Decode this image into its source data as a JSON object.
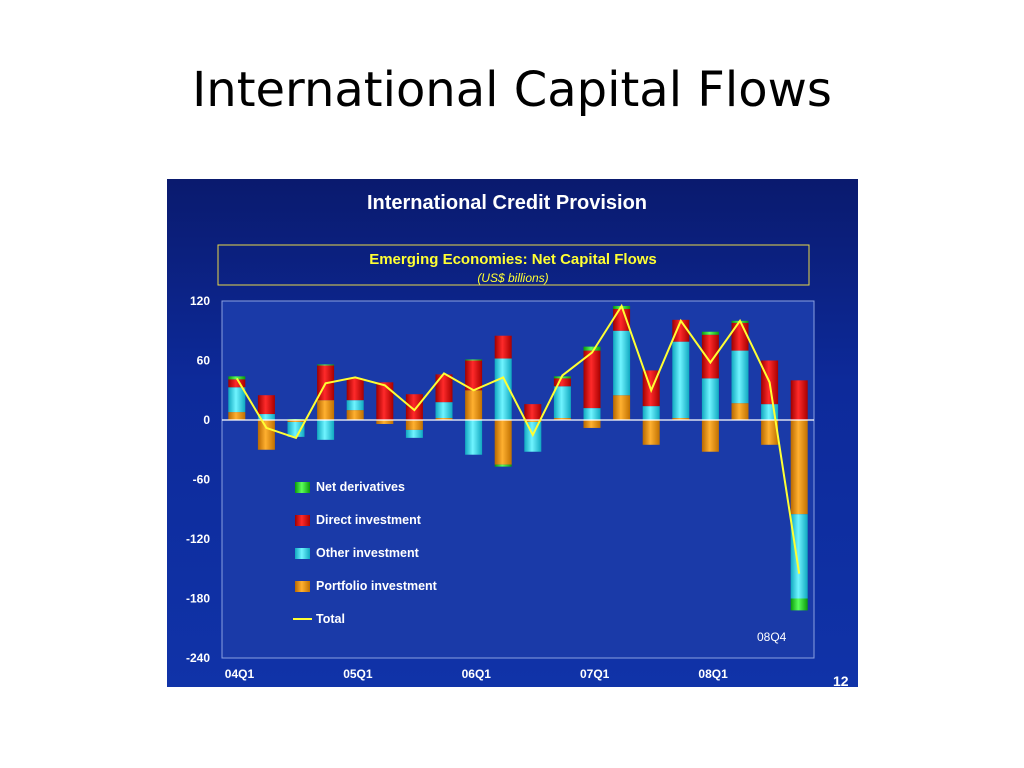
{
  "slide": {
    "title": "International Capital Flows",
    "page_number": "12"
  },
  "chart_data": {
    "type": "bar",
    "stacked": true,
    "title": "International Credit Provision",
    "subtitle": "Emerging Economies: Net Capital Flows",
    "unit_note": "(US$ billions)",
    "ylim": [
      -240,
      120
    ],
    "yticks": [
      120,
      60,
      0,
      -60,
      -120,
      -180,
      -240
    ],
    "categories": [
      "04Q1",
      "04Q2",
      "04Q3",
      "04Q4",
      "05Q1",
      "05Q2",
      "05Q3",
      "05Q4",
      "06Q1",
      "06Q2",
      "06Q3",
      "06Q4",
      "07Q1",
      "07Q2",
      "07Q3",
      "07Q4",
      "08Q1",
      "08Q2",
      "08Q3",
      "08Q4"
    ],
    "xtick_labels": [
      "04Q1",
      "05Q1",
      "06Q1",
      "07Q1",
      "08Q1"
    ],
    "annotation": "08Q4",
    "legend": {
      "position": "lower-left"
    },
    "colors": {
      "net_derivatives": "#1fd01f",
      "direct_investment": "#e00000",
      "other_investment": "#20d8e8",
      "portfolio_investment": "#e08a00",
      "total": "#ffff33"
    },
    "series": [
      {
        "name": "Portfolio investment",
        "key": "portfolio_investment",
        "values": [
          8,
          -30,
          -2,
          20,
          10,
          -4,
          -10,
          2,
          30,
          -45,
          -2,
          2,
          -8,
          25,
          -25,
          2,
          -32,
          17,
          -25,
          -95
        ]
      },
      {
        "name": "Other investment",
        "key": "other_investment",
        "values": [
          25,
          6,
          -15,
          -20,
          10,
          0,
          -8,
          16,
          -35,
          62,
          -30,
          32,
          12,
          65,
          14,
          77,
          42,
          53,
          16,
          -85
        ]
      },
      {
        "name": "Direct investment",
        "key": "direct_investment",
        "values": [
          8,
          19,
          0,
          35,
          22,
          38,
          26,
          28,
          30,
          23,
          16,
          8,
          58,
          22,
          36,
          22,
          44,
          28,
          44,
          40
        ]
      },
      {
        "name": "Net derivatives",
        "key": "net_derivatives",
        "values": [
          3,
          0,
          1,
          1,
          0,
          0,
          0,
          0,
          1,
          -2,
          0,
          2,
          4,
          3,
          0,
          0,
          3,
          2,
          0,
          -12
        ]
      }
    ],
    "total": {
      "name": "Total",
      "values": [
        42,
        -8,
        -18,
        37,
        43,
        35,
        10,
        47,
        30,
        43,
        -15,
        45,
        68,
        115,
        30,
        100,
        58,
        100,
        38,
        -155
      ]
    }
  }
}
